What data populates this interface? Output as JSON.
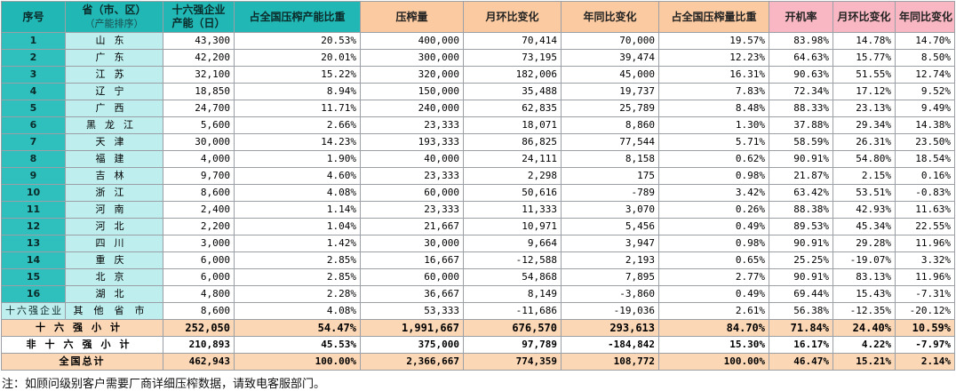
{
  "headers": [
    {
      "main": "序号",
      "sub": ""
    },
    {
      "main": "省（市、区）",
      "sub": "（产能排序）"
    },
    {
      "main": "十六强企业",
      "sub": "产能（日）"
    },
    {
      "main": "占全国压榨产能比重",
      "sub": ""
    },
    {
      "main": "压榨量",
      "sub": ""
    },
    {
      "main": "月环比变化",
      "sub": ""
    },
    {
      "main": "年同比变化",
      "sub": ""
    },
    {
      "main": "占全国压榨量比重",
      "sub": ""
    },
    {
      "main": "开机率",
      "sub": ""
    },
    {
      "main": "月环比变化",
      "sub": ""
    },
    {
      "main": "年同比变化",
      "sub": ""
    }
  ],
  "rows": [
    {
      "idx": "1",
      "prov": "山东",
      "cap": "43,300",
      "cap_share": "20.53%",
      "vol": "400,000",
      "vol_mom": "70,414",
      "vol_yoy": "70,000",
      "vol_share": "19.57%",
      "util": "83.98%",
      "util_mom": "14.78%",
      "util_yoy": "14.70%"
    },
    {
      "idx": "2",
      "prov": "广东",
      "cap": "42,200",
      "cap_share": "20.01%",
      "vol": "300,000",
      "vol_mom": "73,195",
      "vol_yoy": "39,474",
      "vol_share": "12.23%",
      "util": "64.63%",
      "util_mom": "15.77%",
      "util_yoy": "8.50%"
    },
    {
      "idx": "3",
      "prov": "江苏",
      "cap": "32,100",
      "cap_share": "15.22%",
      "vol": "320,000",
      "vol_mom": "182,006",
      "vol_yoy": "45,000",
      "vol_share": "16.31%",
      "util": "90.63%",
      "util_mom": "51.55%",
      "util_yoy": "12.74%"
    },
    {
      "idx": "4",
      "prov": "辽宁",
      "cap": "18,850",
      "cap_share": "8.94%",
      "vol": "150,000",
      "vol_mom": "35,488",
      "vol_yoy": "19,737",
      "vol_share": "7.83%",
      "util": "72.34%",
      "util_mom": "17.12%",
      "util_yoy": "9.52%"
    },
    {
      "idx": "5",
      "prov": "广西",
      "cap": "24,700",
      "cap_share": "11.71%",
      "vol": "240,000",
      "vol_mom": "62,835",
      "vol_yoy": "25,789",
      "vol_share": "8.48%",
      "util": "88.33%",
      "util_mom": "23.13%",
      "util_yoy": "9.49%"
    },
    {
      "idx": "6",
      "prov": "黑龙江",
      "cap": "5,600",
      "cap_share": "2.66%",
      "vol": "23,333",
      "vol_mom": "18,071",
      "vol_yoy": "8,860",
      "vol_share": "1.30%",
      "util": "37.88%",
      "util_mom": "29.34%",
      "util_yoy": "14.38%"
    },
    {
      "idx": "7",
      "prov": "天津",
      "cap": "30,000",
      "cap_share": "14.23%",
      "vol": "193,333",
      "vol_mom": "86,825",
      "vol_yoy": "77,544",
      "vol_share": "5.71%",
      "util": "58.59%",
      "util_mom": "26.31%",
      "util_yoy": "23.50%"
    },
    {
      "idx": "8",
      "prov": "福建",
      "cap": "4,000",
      "cap_share": "1.90%",
      "vol": "40,000",
      "vol_mom": "24,111",
      "vol_yoy": "8,158",
      "vol_share": "0.62%",
      "util": "90.91%",
      "util_mom": "54.80%",
      "util_yoy": "18.54%"
    },
    {
      "idx": "9",
      "prov": "吉林",
      "cap": "9,700",
      "cap_share": "4.60%",
      "vol": "23,333",
      "vol_mom": "2,298",
      "vol_yoy": "175",
      "vol_share": "0.98%",
      "util": "21.87%",
      "util_mom": "2.15%",
      "util_yoy": "0.16%"
    },
    {
      "idx": "10",
      "prov": "浙江",
      "cap": "8,600",
      "cap_share": "4.08%",
      "vol": "60,000",
      "vol_mom": "50,616",
      "vol_yoy": "-789",
      "vol_share": "3.42%",
      "util": "63.42%",
      "util_mom": "53.51%",
      "util_yoy": "-0.83%"
    },
    {
      "idx": "11",
      "prov": "河南",
      "cap": "2,400",
      "cap_share": "1.14%",
      "vol": "23,333",
      "vol_mom": "11,333",
      "vol_yoy": "3,070",
      "vol_share": "0.26%",
      "util": "88.38%",
      "util_mom": "42.93%",
      "util_yoy": "11.63%"
    },
    {
      "idx": "12",
      "prov": "河北",
      "cap": "2,200",
      "cap_share": "1.04%",
      "vol": "21,667",
      "vol_mom": "10,971",
      "vol_yoy": "5,456",
      "vol_share": "0.49%",
      "util": "89.53%",
      "util_mom": "45.34%",
      "util_yoy": "22.55%"
    },
    {
      "idx": "13",
      "prov": "四川",
      "cap": "3,000",
      "cap_share": "1.42%",
      "vol": "30,000",
      "vol_mom": "9,664",
      "vol_yoy": "3,947",
      "vol_share": "0.98%",
      "util": "90.91%",
      "util_mom": "29.28%",
      "util_yoy": "11.96%"
    },
    {
      "idx": "14",
      "prov": "重庆",
      "cap": "6,000",
      "cap_share": "2.85%",
      "vol": "16,667",
      "vol_mom": "-12,588",
      "vol_yoy": "2,193",
      "vol_share": "0.65%",
      "util": "25.25%",
      "util_mom": "-19.07%",
      "util_yoy": "3.32%"
    },
    {
      "idx": "15",
      "prov": "北京",
      "cap": "6,000",
      "cap_share": "2.85%",
      "vol": "60,000",
      "vol_mom": "54,868",
      "vol_yoy": "7,895",
      "vol_share": "2.77%",
      "util": "90.91%",
      "util_mom": "83.13%",
      "util_yoy": "11.96%"
    },
    {
      "idx": "16",
      "prov": "湖北",
      "cap": "4,800",
      "cap_share": "2.28%",
      "vol": "36,667",
      "vol_mom": "8,149",
      "vol_yoy": "-3,860",
      "vol_share": "0.49%",
      "util": "69.44%",
      "util_mom": "15.43%",
      "util_yoy": "-7.31%"
    }
  ],
  "other": {
    "idx": "十六强企业",
    "prov": "其他省市",
    "cap": "8,600",
    "cap_share": "4.08%",
    "vol": "53,333",
    "vol_mom": "-11,686",
    "vol_yoy": "-19,036",
    "vol_share": "2.61%",
    "util": "56.38%",
    "util_mom": "-12.35%",
    "util_yoy": "-20.12%"
  },
  "summary": [
    {
      "cls": "sum",
      "label": "十六强小计",
      "cap": "252,050",
      "cap_share": "54.47%",
      "vol": "1,991,667",
      "vol_mom": "676,570",
      "vol_yoy": "293,613",
      "vol_share": "84.70%",
      "util": "71.84%",
      "util_mom": "24.40%",
      "util_yoy": "10.59%"
    },
    {
      "cls": "nonsum",
      "label": "非十六强小计",
      "cap": "210,893",
      "cap_share": "45.53%",
      "vol": "375,000",
      "vol_mom": "97,789",
      "vol_yoy": "-184,842",
      "vol_share": "15.30%",
      "util": "16.17%",
      "util_mom": "4.22%",
      "util_yoy": "-7.97%"
    },
    {
      "cls": "total",
      "label": "全国总计",
      "cap": "462,943",
      "cap_share": "100.00%",
      "vol": "2,366,667",
      "vol_mom": "774,359",
      "vol_yoy": "108,772",
      "vol_share": "100.00%",
      "util": "46.47%",
      "util_mom": "15.21%",
      "util_yoy": "2.14%"
    }
  ],
  "note": "注：如顾问级别客户需要厂商详细压榨数据，请致电客服部门。"
}
